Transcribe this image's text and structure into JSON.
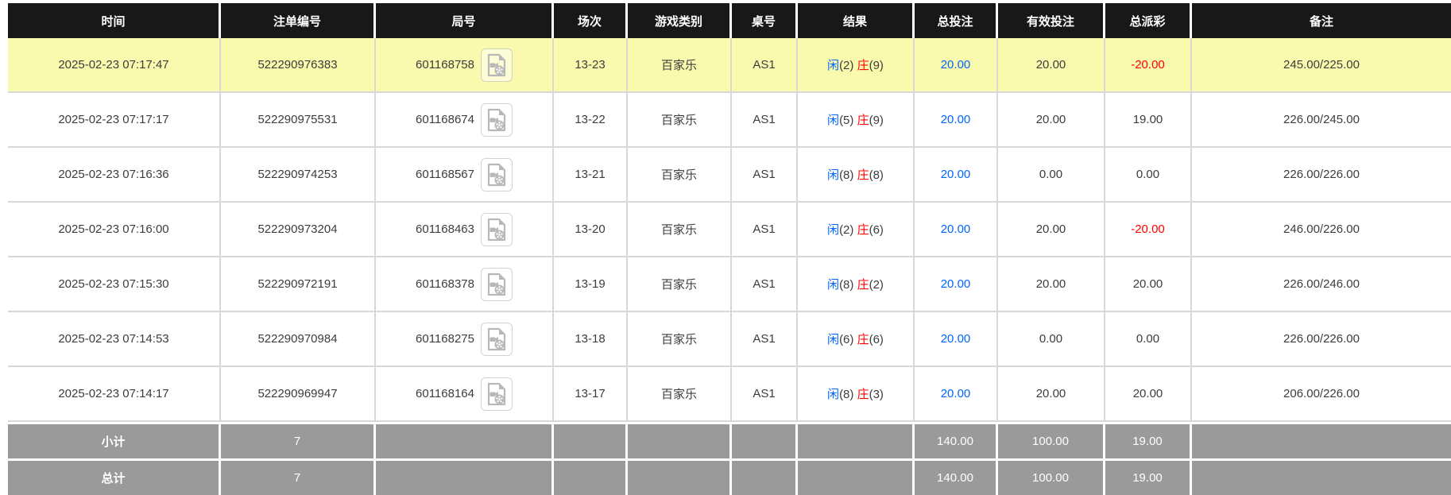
{
  "table": {
    "columns": [
      {
        "label": "时间"
      },
      {
        "label": "注单编号"
      },
      {
        "label": "局号"
      },
      {
        "label": "场次"
      },
      {
        "label": "游戏类别"
      },
      {
        "label": "桌号"
      },
      {
        "label": "结果"
      },
      {
        "label": "总投注"
      },
      {
        "label": "有效投注"
      },
      {
        "label": "总派彩"
      },
      {
        "label": "备注"
      }
    ],
    "rows": [
      {
        "time": "2025-02-23 07:17:47",
        "bet_no": "522290976383",
        "round_no": "601168758",
        "session": "13-23",
        "game": "百家乐",
        "table_no": "AS1",
        "result": {
          "player_label": "闲",
          "player_score": "(2)",
          "banker_label": "庄",
          "banker_score": "(9)"
        },
        "total_bet": "20.00",
        "valid_bet": "20.00",
        "payout": "-20.00",
        "remark": "245.00/225.00",
        "highlight": true
      },
      {
        "time": "2025-02-23 07:17:17",
        "bet_no": "522290975531",
        "round_no": "601168674",
        "session": "13-22",
        "game": "百家乐",
        "table_no": "AS1",
        "result": {
          "player_label": "闲",
          "player_score": "(5)",
          "banker_label": "庄",
          "banker_score": "(9)"
        },
        "total_bet": "20.00",
        "valid_bet": "20.00",
        "payout": "19.00",
        "remark": "226.00/245.00",
        "highlight": false
      },
      {
        "time": "2025-02-23 07:16:36",
        "bet_no": "522290974253",
        "round_no": "601168567",
        "session": "13-21",
        "game": "百家乐",
        "table_no": "AS1",
        "result": {
          "player_label": "闲",
          "player_score": "(8)",
          "banker_label": "庄",
          "banker_score": "(8)"
        },
        "total_bet": "20.00",
        "valid_bet": "0.00",
        "payout": "0.00",
        "remark": "226.00/226.00",
        "highlight": false
      },
      {
        "time": "2025-02-23 07:16:00",
        "bet_no": "522290973204",
        "round_no": "601168463",
        "session": "13-20",
        "game": "百家乐",
        "table_no": "AS1",
        "result": {
          "player_label": "闲",
          "player_score": "(2)",
          "banker_label": "庄",
          "banker_score": "(6)"
        },
        "total_bet": "20.00",
        "valid_bet": "20.00",
        "payout": "-20.00",
        "remark": "246.00/226.00",
        "highlight": false
      },
      {
        "time": "2025-02-23 07:15:30",
        "bet_no": "522290972191",
        "round_no": "601168378",
        "session": "13-19",
        "game": "百家乐",
        "table_no": "AS1",
        "result": {
          "player_label": "闲",
          "player_score": "(8)",
          "banker_label": "庄",
          "banker_score": "(2)"
        },
        "total_bet": "20.00",
        "valid_bet": "20.00",
        "payout": "20.00",
        "remark": "226.00/246.00",
        "highlight": false
      },
      {
        "time": "2025-02-23 07:14:53",
        "bet_no": "522290970984",
        "round_no": "601168275",
        "session": "13-18",
        "game": "百家乐",
        "table_no": "AS1",
        "result": {
          "player_label": "闲",
          "player_score": "(6)",
          "banker_label": "庄",
          "banker_score": "(6)"
        },
        "total_bet": "20.00",
        "valid_bet": "0.00",
        "payout": "0.00",
        "remark": "226.00/226.00",
        "highlight": false
      },
      {
        "time": "2025-02-23 07:14:17",
        "bet_no": "522290969947",
        "round_no": "601168164",
        "session": "13-17",
        "game": "百家乐",
        "table_no": "AS1",
        "result": {
          "player_label": "闲",
          "player_score": "(8)",
          "banker_label": "庄",
          "banker_score": "(3)"
        },
        "total_bet": "20.00",
        "valid_bet": "20.00",
        "payout": "20.00",
        "remark": "206.00/226.00",
        "highlight": false
      }
    ],
    "footer": [
      {
        "label": "小计",
        "count": "7",
        "total_bet": "140.00",
        "valid_bet": "100.00",
        "payout": "19.00"
      },
      {
        "label": "总计",
        "count": "7",
        "total_bet": "140.00",
        "valid_bet": "100.00",
        "payout": "19.00"
      }
    ]
  },
  "colors": {
    "header_bg": "#181818",
    "header_text": "#ffffff",
    "highlight_row": "#fafaaf",
    "footer_bg": "#9a9a9a",
    "grid_line": "#d8d8d8",
    "player_blue": "#0066ff",
    "banker_red": "#ff0000",
    "text": "#3c3c3c"
  },
  "icons": {
    "video_replay": "video-file-icon"
  }
}
